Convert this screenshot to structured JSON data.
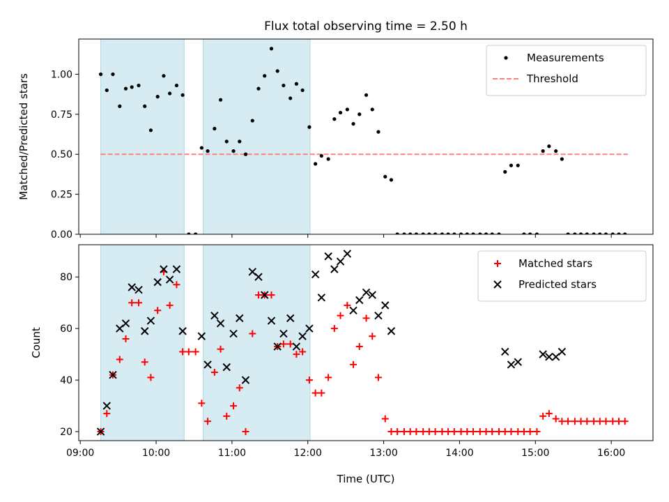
{
  "title": "Flux total observing time = 2.50 h",
  "chart_data": [
    {
      "type": "scatter",
      "title": "Flux total observing time = 2.50 h",
      "xlabel": "",
      "ylabel": "Matched/Predicted stars",
      "xlim": [
        8.98,
        16.55
      ],
      "ylim": [
        0,
        1.22
      ],
      "yticks": [
        0.0,
        0.25,
        0.5,
        0.75,
        1.0
      ],
      "ytick_labels": [
        "0.00",
        "0.25",
        "0.50",
        "0.75",
        "1.00"
      ],
      "shaded_x_ranges": [
        [
          9.27,
          10.37
        ],
        [
          10.62,
          12.03
        ]
      ],
      "shade_color": "#add8e6",
      "legend_position": "top-right",
      "grid": false,
      "threshold": {
        "name": "Threshold",
        "y": 0.5,
        "x_range": [
          9.27,
          16.22
        ],
        "color": "#ff8080"
      },
      "series": [
        {
          "name": "Measurements",
          "color": "#000000",
          "marker": "dot",
          "points": [
            [
              9.27,
              1.0
            ],
            [
              9.35,
              0.9
            ],
            [
              9.43,
              1.0
            ],
            [
              9.52,
              0.8
            ],
            [
              9.6,
              0.91
            ],
            [
              9.68,
              0.92
            ],
            [
              9.77,
              0.93
            ],
            [
              9.85,
              0.8
            ],
            [
              9.93,
              0.65
            ],
            [
              10.02,
              0.86
            ],
            [
              10.1,
              0.99
            ],
            [
              10.18,
              0.88
            ],
            [
              10.27,
              0.93
            ],
            [
              10.35,
              0.87
            ],
            [
              10.43,
              0.0
            ],
            [
              10.52,
              0.0
            ],
            [
              10.6,
              0.54
            ],
            [
              10.68,
              0.52
            ],
            [
              10.77,
              0.66
            ],
            [
              10.85,
              0.84
            ],
            [
              10.93,
              0.58
            ],
            [
              11.02,
              0.52
            ],
            [
              11.1,
              0.58
            ],
            [
              11.18,
              0.5
            ],
            [
              11.27,
              0.71
            ],
            [
              11.35,
              0.91
            ],
            [
              11.43,
              0.99
            ],
            [
              11.52,
              1.16
            ],
            [
              11.6,
              1.02
            ],
            [
              11.68,
              0.93
            ],
            [
              11.77,
              0.85
            ],
            [
              11.85,
              0.94
            ],
            [
              11.93,
              0.9
            ],
            [
              12.02,
              0.67
            ],
            [
              12.1,
              0.44
            ],
            [
              12.18,
              0.49
            ],
            [
              12.27,
              0.47
            ],
            [
              12.35,
              0.72
            ],
            [
              12.43,
              0.76
            ],
            [
              12.52,
              0.78
            ],
            [
              12.6,
              0.69
            ],
            [
              12.68,
              0.75
            ],
            [
              12.77,
              0.87
            ],
            [
              12.85,
              0.78
            ],
            [
              12.93,
              0.64
            ],
            [
              13.02,
              0.36
            ],
            [
              13.1,
              0.34
            ],
            [
              13.18,
              0.0
            ],
            [
              13.27,
              0.0
            ],
            [
              13.35,
              0.0
            ],
            [
              13.43,
              0.0
            ],
            [
              13.52,
              0.0
            ],
            [
              13.6,
              0.0
            ],
            [
              13.68,
              0.0
            ],
            [
              13.77,
              0.0
            ],
            [
              13.85,
              0.0
            ],
            [
              13.93,
              0.0
            ],
            [
              14.02,
              0.0
            ],
            [
              14.1,
              0.0
            ],
            [
              14.18,
              0.0
            ],
            [
              14.27,
              0.0
            ],
            [
              14.35,
              0.0
            ],
            [
              14.43,
              0.0
            ],
            [
              14.52,
              0.0
            ],
            [
              14.6,
              0.39
            ],
            [
              14.68,
              0.43
            ],
            [
              14.77,
              0.43
            ],
            [
              14.85,
              0.0
            ],
            [
              14.93,
              0.0
            ],
            [
              15.02,
              0.0
            ],
            [
              15.1,
              0.52
            ],
            [
              15.18,
              0.55
            ],
            [
              15.27,
              0.52
            ],
            [
              15.35,
              0.47
            ],
            [
              15.43,
              0.0
            ],
            [
              15.52,
              0.0
            ],
            [
              15.6,
              0.0
            ],
            [
              15.68,
              0.0
            ],
            [
              15.77,
              0.0
            ],
            [
              15.85,
              0.0
            ],
            [
              15.93,
              0.0
            ],
            [
              16.02,
              0.0
            ],
            [
              16.1,
              0.0
            ],
            [
              16.18,
              0.0
            ]
          ]
        }
      ]
    },
    {
      "type": "scatter",
      "title": "",
      "xlabel": "Time (UTC)",
      "ylabel": "Count",
      "xlim": [
        8.98,
        16.55
      ],
      "ylim": [
        16.5,
        92.5
      ],
      "yticks": [
        20,
        40,
        60,
        80
      ],
      "ytick_labels": [
        "20",
        "40",
        "60",
        "80"
      ],
      "xticks": [
        9,
        10,
        11,
        12,
        13,
        14,
        15,
        16
      ],
      "xtick_labels": [
        "09:00",
        "10:00",
        "11:00",
        "12:00",
        "13:00",
        "14:00",
        "15:00",
        "16:00"
      ],
      "shaded_x_ranges": [
        [
          9.27,
          10.37
        ],
        [
          10.62,
          12.03
        ]
      ],
      "shade_color": "#add8e6",
      "legend_position": "top-right",
      "grid": false,
      "series": [
        {
          "name": "Matched stars",
          "color": "#ff0000",
          "marker": "plus",
          "points": [
            [
              9.27,
              20
            ],
            [
              9.35,
              27
            ],
            [
              9.43,
              42
            ],
            [
              9.52,
              48
            ],
            [
              9.6,
              56
            ],
            [
              9.68,
              70
            ],
            [
              9.77,
              70
            ],
            [
              9.85,
              47
            ],
            [
              9.93,
              41
            ],
            [
              10.02,
              67
            ],
            [
              10.1,
              82
            ],
            [
              10.18,
              69
            ],
            [
              10.27,
              77
            ],
            [
              10.35,
              51
            ],
            [
              10.43,
              51
            ],
            [
              10.52,
              51
            ],
            [
              10.6,
              31
            ],
            [
              10.68,
              24
            ],
            [
              10.77,
              43
            ],
            [
              10.85,
              52
            ],
            [
              10.93,
              26
            ],
            [
              11.02,
              30
            ],
            [
              11.1,
              37
            ],
            [
              11.18,
              20
            ],
            [
              11.27,
              58
            ],
            [
              11.35,
              73
            ],
            [
              11.43,
              73
            ],
            [
              11.52,
              73
            ],
            [
              11.6,
              53
            ],
            [
              11.68,
              54
            ],
            [
              11.77,
              54
            ],
            [
              11.85,
              50
            ],
            [
              11.93,
              51
            ],
            [
              12.02,
              40
            ],
            [
              12.1,
              35
            ],
            [
              12.18,
              35
            ],
            [
              12.27,
              41
            ],
            [
              12.35,
              60
            ],
            [
              12.43,
              65
            ],
            [
              12.52,
              69
            ],
            [
              12.6,
              46
            ],
            [
              12.68,
              53
            ],
            [
              12.77,
              64
            ],
            [
              12.85,
              57
            ],
            [
              12.93,
              41
            ],
            [
              13.02,
              25
            ],
            [
              13.1,
              20
            ],
            [
              13.18,
              20
            ],
            [
              13.27,
              20
            ],
            [
              13.35,
              20
            ],
            [
              13.43,
              20
            ],
            [
              13.52,
              20
            ],
            [
              13.6,
              20
            ],
            [
              13.68,
              20
            ],
            [
              13.77,
              20
            ],
            [
              13.85,
              20
            ],
            [
              13.93,
              20
            ],
            [
              14.02,
              20
            ],
            [
              14.1,
              20
            ],
            [
              14.18,
              20
            ],
            [
              14.27,
              20
            ],
            [
              14.35,
              20
            ],
            [
              14.43,
              20
            ],
            [
              14.52,
              20
            ],
            [
              14.6,
              20
            ],
            [
              14.68,
              20
            ],
            [
              14.77,
              20
            ],
            [
              14.85,
              20
            ],
            [
              14.93,
              20
            ],
            [
              15.02,
              20
            ],
            [
              15.1,
              26
            ],
            [
              15.18,
              27
            ],
            [
              15.27,
              25
            ],
            [
              15.35,
              24
            ],
            [
              15.43,
              24
            ],
            [
              15.52,
              24
            ],
            [
              15.6,
              24
            ],
            [
              15.68,
              24
            ],
            [
              15.77,
              24
            ],
            [
              15.85,
              24
            ],
            [
              15.93,
              24
            ],
            [
              16.02,
              24
            ],
            [
              16.1,
              24
            ],
            [
              16.18,
              24
            ]
          ]
        },
        {
          "name": "Predicted stars",
          "color": "#000000",
          "marker": "x",
          "points": [
            [
              9.27,
              20
            ],
            [
              9.35,
              30
            ],
            [
              9.43,
              42
            ],
            [
              9.52,
              60
            ],
            [
              9.6,
              62
            ],
            [
              9.68,
              76
            ],
            [
              9.77,
              75
            ],
            [
              9.85,
              59
            ],
            [
              9.93,
              63
            ],
            [
              10.02,
              78
            ],
            [
              10.1,
              83
            ],
            [
              10.18,
              79
            ],
            [
              10.27,
              83
            ],
            [
              10.35,
              59
            ],
            [
              10.6,
              57
            ],
            [
              10.68,
              46
            ],
            [
              10.77,
              65
            ],
            [
              10.85,
              62
            ],
            [
              10.93,
              45
            ],
            [
              11.02,
              58
            ],
            [
              11.1,
              64
            ],
            [
              11.18,
              40
            ],
            [
              11.27,
              82
            ],
            [
              11.35,
              80
            ],
            [
              11.43,
              73
            ],
            [
              11.52,
              63
            ],
            [
              11.6,
              53
            ],
            [
              11.68,
              58
            ],
            [
              11.77,
              64
            ],
            [
              11.85,
              53
            ],
            [
              11.93,
              57
            ],
            [
              12.02,
              60
            ],
            [
              12.1,
              81
            ],
            [
              12.18,
              72
            ],
            [
              12.27,
              88
            ],
            [
              12.35,
              83
            ],
            [
              12.43,
              86
            ],
            [
              12.52,
              89
            ],
            [
              12.6,
              67
            ],
            [
              12.68,
              71
            ],
            [
              12.77,
              74
            ],
            [
              12.85,
              73
            ],
            [
              12.93,
              65
            ],
            [
              13.02,
              69
            ],
            [
              13.1,
              59
            ],
            [
              14.6,
              51
            ],
            [
              14.68,
              46
            ],
            [
              14.77,
              47
            ],
            [
              15.1,
              50
            ],
            [
              15.18,
              49
            ],
            [
              15.27,
              49
            ],
            [
              15.35,
              51
            ]
          ]
        }
      ]
    }
  ]
}
